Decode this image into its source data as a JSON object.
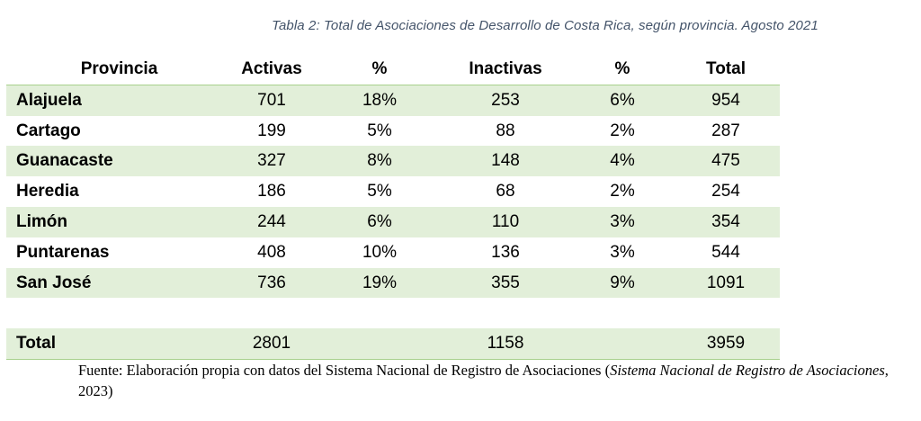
{
  "caption": "Tabla 2: Total de Asociaciones de Desarrollo de Costa Rica, según provincia. Agosto 2021",
  "table": {
    "headers": [
      "Provincia",
      "Activas",
      "%",
      "Inactivas",
      "%",
      "Total"
    ],
    "rows": [
      [
        "Alajuela",
        "701",
        "18%",
        "253",
        "6%",
        "954"
      ],
      [
        "Cartago",
        "199",
        "5%",
        "88",
        "2%",
        "287"
      ],
      [
        "Guanacaste",
        "327",
        "8%",
        "148",
        "4%",
        "475"
      ],
      [
        "Heredia",
        "186",
        "5%",
        "68",
        "2%",
        "254"
      ],
      [
        "Limón",
        "244",
        "6%",
        "110",
        "3%",
        "354"
      ],
      [
        "Puntarenas",
        "408",
        "10%",
        "136",
        "3%",
        "544"
      ],
      [
        "San José",
        "736",
        "19%",
        "355",
        "9%",
        "1091"
      ]
    ],
    "total": [
      "Total",
      "2801",
      "",
      "1158",
      "",
      "3959"
    ],
    "shade_color": "#e2efd9",
    "rule_color": "#a8d08d"
  },
  "source": {
    "prefix": "Fuente: Elaboración propia con datos del Sistema Nacional de Registro de Asociaciones (",
    "italic": "Sistema Nacional de Registro de Asociaciones",
    "suffix": ", 2023)"
  }
}
